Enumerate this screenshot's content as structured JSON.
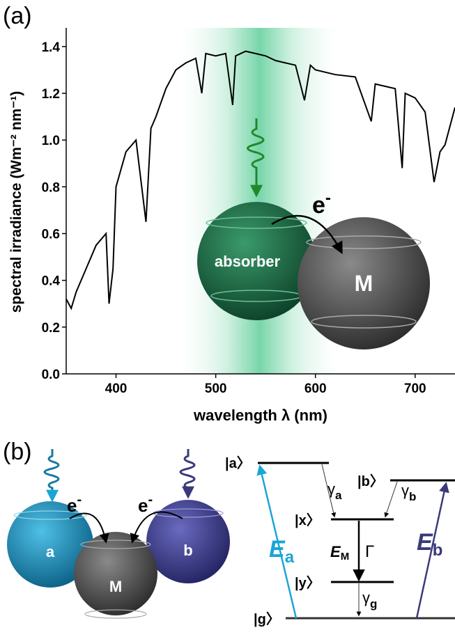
{
  "chart_data": {
    "type": "line",
    "panel_label": "(a)",
    "xlabel": "wavelength λ (nm)",
    "ylabel": "spectral irradiance (Wm⁻² nm⁻¹)",
    "xlim": [
      350,
      740
    ],
    "ylim": [
      0,
      1.48
    ],
    "xticks": [
      400,
      500,
      600,
      700
    ],
    "yticks": [
      {
        "value": 0,
        "label": "0.0"
      },
      0.2,
      0.4,
      0.6,
      0.8,
      {
        "value": 1,
        "label": "1.0"
      },
      1.2,
      1.4
    ],
    "color": "#000000",
    "x": [
      350,
      355,
      360,
      370,
      380,
      390,
      393,
      397,
      400,
      410,
      420,
      430,
      435,
      440,
      450,
      460,
      470,
      480,
      486,
      490,
      500,
      510,
      517,
      520,
      530,
      540,
      550,
      560,
      570,
      580,
      589,
      595,
      600,
      620,
      640,
      656,
      660,
      670,
      680,
      687,
      690,
      700,
      710,
      719,
      725,
      730,
      740
    ],
    "values": [
      0.32,
      0.28,
      0.35,
      0.45,
      0.55,
      0.6,
      0.3,
      0.45,
      0.8,
      0.95,
      1.0,
      0.65,
      1.05,
      1.1,
      1.22,
      1.3,
      1.33,
      1.35,
      1.2,
      1.37,
      1.36,
      1.37,
      1.15,
      1.36,
      1.38,
      1.37,
      1.36,
      1.34,
      1.33,
      1.32,
      1.17,
      1.32,
      1.3,
      1.28,
      1.27,
      1.08,
      1.24,
      1.23,
      1.22,
      0.88,
      1.2,
      1.18,
      1.12,
      0.82,
      0.95,
      0.98,
      1.14
    ],
    "inset": {
      "absorber": "absorber",
      "metal": "M",
      "electron": "e",
      "electron_charge": "-"
    }
  },
  "panel_b": {
    "panel_label": "(b)",
    "spheres": {
      "a": "a",
      "b": "b",
      "metal": "M",
      "electron": "e",
      "electron_charge": "-"
    },
    "levels": {
      "a": "|a〉",
      "b": "|b〉",
      "x": "|x〉",
      "y": "|y〉",
      "g": "|g〉"
    },
    "rates": {
      "gamma_a": {
        "main": "γ",
        "sub": "a"
      },
      "gamma_b": {
        "main": "γ",
        "sub": "b"
      },
      "gamma_g": {
        "main": "γ",
        "sub": "g"
      },
      "Gamma": "Γ"
    },
    "energies": {
      "E_a": {
        "main": "E",
        "sub": "a"
      },
      "E_b": {
        "main": "E",
        "sub": "b"
      },
      "E_M": {
        "main": "E",
        "sub": "M"
      }
    }
  }
}
